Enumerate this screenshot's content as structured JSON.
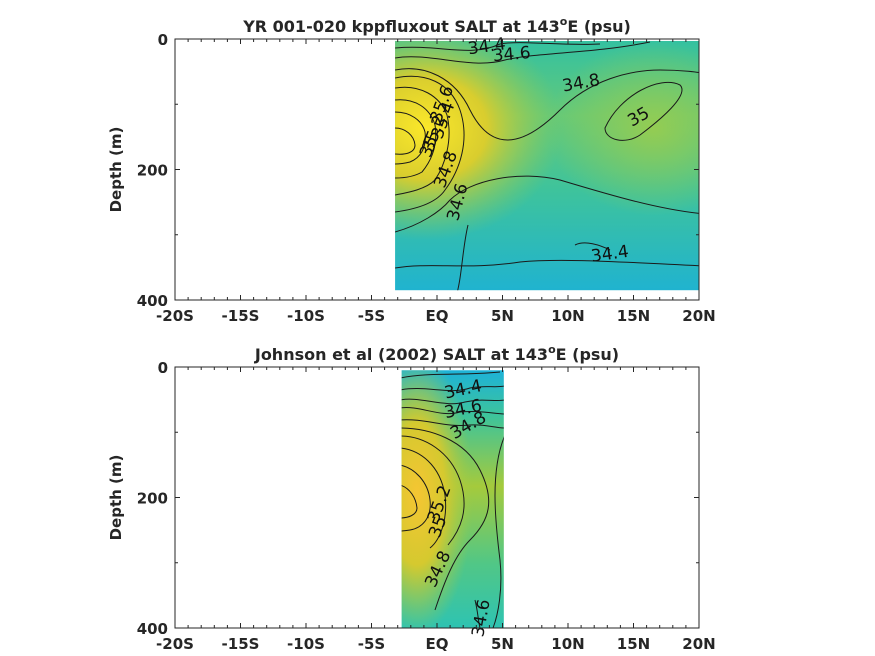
{
  "chart_data": [
    {
      "type": "contour",
      "title_main": "YR 001-020 kppfluxout SALT at 143",
      "title_sup": "o",
      "title_end": "E (psu)",
      "ylabel": "Depth (m)",
      "xlim": [
        -20,
        20
      ],
      "ylim": [
        0,
        400
      ],
      "y_reversed": true,
      "xticks": [
        -20,
        -15,
        -10,
        -5,
        0,
        5,
        10,
        15,
        20
      ],
      "xtick_labels": [
        "-20S",
        "-15S",
        "-10S",
        "-5S",
        "EQ",
        "5N",
        "10N",
        "15N",
        "20N"
      ],
      "yticks": [
        0,
        200,
        400
      ],
      "ytick_labels": [
        "0",
        "200",
        "400"
      ],
      "data_extent": {
        "x": [
          -3.2,
          20
        ],
        "y": [
          3,
          385
        ]
      },
      "colormap": [
        "#1db2d8",
        "#2ec3b2",
        "#6ccc6a",
        "#b8c92e",
        "#f3cf2e",
        "#fbe82a"
      ],
      "contour_labels": [
        {
          "text": "34.4",
          "x": 3.8,
          "y": 12
        },
        {
          "text": "34.6",
          "x": 5.7,
          "y": 24
        },
        {
          "text": "34.8",
          "x": 11.0,
          "y": 68
        },
        {
          "text": "35",
          "x": 15.4,
          "y": 120
        },
        {
          "text": "35.6",
          "x": 0.4,
          "y": 100
        },
        {
          "text": "35.4",
          "x": 0.5,
          "y": 125
        },
        {
          "text": "35.2",
          "x": -0.2,
          "y": 145
        },
        {
          "text": "35",
          "x": -0.6,
          "y": 165
        },
        {
          "text": "34.8",
          "x": 0.7,
          "y": 200
        },
        {
          "text": "34.6",
          "x": 1.6,
          "y": 250
        },
        {
          "text": "34.4",
          "x": 13.2,
          "y": 330
        }
      ]
    },
    {
      "type": "contour",
      "title_main": "Johnson et al (2002) SALT at 143",
      "title_sup": "o",
      "title_end": "E (psu)",
      "ylabel": "Depth (m)",
      "xlim": [
        -20,
        20
      ],
      "ylim": [
        0,
        400
      ],
      "y_reversed": true,
      "xticks": [
        -20,
        -15,
        -10,
        -5,
        0,
        5,
        10,
        15,
        20
      ],
      "xtick_labels": [
        "-20S",
        "-15S",
        "-10S",
        "-5S",
        "EQ",
        "5N",
        "10N",
        "15N",
        "20N"
      ],
      "yticks": [
        0,
        200,
        400
      ],
      "ytick_labels": [
        "0",
        "200",
        "400"
      ],
      "data_extent": {
        "x": [
          -2.7,
          5.1
        ],
        "y": [
          5,
          400
        ]
      },
      "colormap": [
        "#1db2d8",
        "#2ec3b2",
        "#6ccc6a",
        "#b8c92e",
        "#f3cf2e",
        "#fbe82a"
      ],
      "contour_labels": [
        {
          "text": "34.4",
          "x": 2.0,
          "y": 35
        },
        {
          "text": "34.6",
          "x": 2.0,
          "y": 65
        },
        {
          "text": "34.8",
          "x": 2.4,
          "y": 90
        },
        {
          "text": "35.2",
          "x": 0.2,
          "y": 210
        },
        {
          "text": "35",
          "x": 0.1,
          "y": 245
        },
        {
          "text": "34.8",
          "x": 0.1,
          "y": 310
        },
        {
          "text": "34.6",
          "x": 3.4,
          "y": 385
        }
      ]
    }
  ]
}
